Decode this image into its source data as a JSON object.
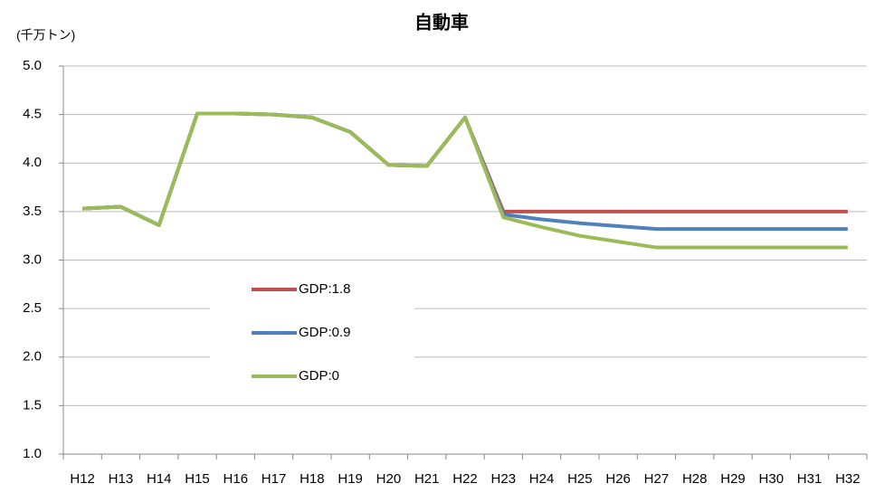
{
  "chart_data": {
    "type": "line",
    "title": "自動車",
    "y_label": "(千万トン)",
    "categories": [
      "H12",
      "H13",
      "H14",
      "H15",
      "H16",
      "H17",
      "H18",
      "H19",
      "H20",
      "H21",
      "H22",
      "H23",
      "H24",
      "H25",
      "H26",
      "H27",
      "H28",
      "H29",
      "H30",
      "H31",
      "H32"
    ],
    "series": [
      {
        "name": "GDP:1.8",
        "color": "#c0504d",
        "values": [
          3.53,
          3.55,
          3.36,
          4.51,
          4.51,
          4.5,
          4.47,
          4.32,
          3.98,
          3.97,
          4.47,
          3.5,
          3.5,
          3.5,
          3.5,
          3.5,
          3.5,
          3.5,
          3.5,
          3.5,
          3.5
        ]
      },
      {
        "name": "GDP:0.9",
        "color": "#4f81bd",
        "values": [
          3.53,
          3.55,
          3.36,
          4.51,
          4.51,
          4.5,
          4.47,
          4.32,
          3.98,
          3.97,
          4.47,
          3.47,
          3.42,
          3.38,
          3.35,
          3.32,
          3.32,
          3.32,
          3.32,
          3.32,
          3.32
        ]
      },
      {
        "name": "GDP:0",
        "color": "#9bbb59",
        "values": [
          3.53,
          3.55,
          3.36,
          4.51,
          4.51,
          4.5,
          4.47,
          4.32,
          3.98,
          3.97,
          4.47,
          3.44,
          3.34,
          3.25,
          3.19,
          3.13,
          3.13,
          3.13,
          3.13,
          3.13,
          3.13
        ]
      }
    ],
    "ylim": [
      1,
      5
    ],
    "yticks": [
      {
        "value": 1,
        "label": "1.0"
      },
      1.5,
      {
        "value": 2,
        "label": "2.0"
      },
      2.5,
      {
        "value": 3,
        "label": "3.0"
      },
      3.5,
      {
        "value": 4,
        "label": "4.0"
      },
      4.5,
      {
        "value": 5,
        "label": "5.0"
      }
    ],
    "grid": true
  }
}
